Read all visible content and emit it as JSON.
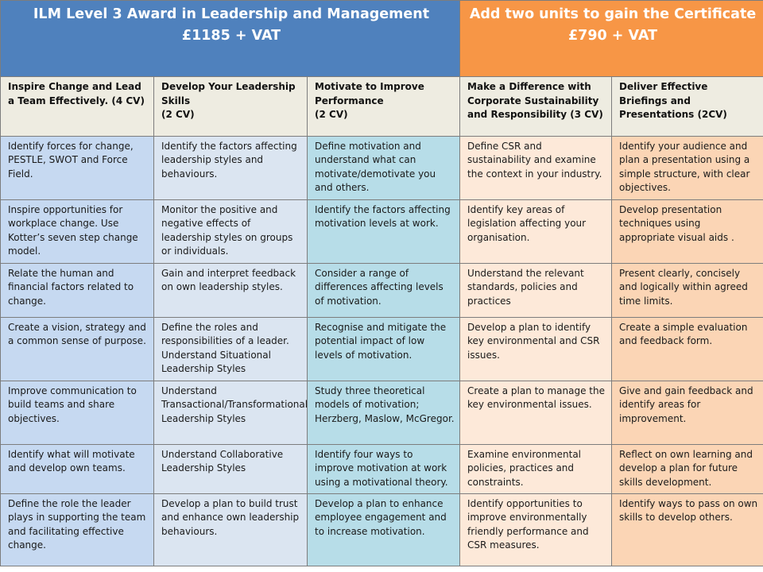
{
  "header": {
    "left_line1": "ILM Level 3 Award in Leadership and Management",
    "left_line2": "£1185  + VAT",
    "right_line1": "Add two units to gain the Certificate",
    "right_line2": "£790 + VAT"
  },
  "units": [
    {
      "title": "Inspire Change and Lead a Team Effectively.  (4 CV)",
      "credits": ""
    },
    {
      "title": "Develop Your Leadership Skills",
      "credits": "(2 CV)"
    },
    {
      "title": "Motivate to Improve Performance",
      "credits": "(2 CV)"
    },
    {
      "title": "Make a Difference with Corporate  Sustainability and Responsibility (3 CV)",
      "credits": ""
    },
    {
      "title": "Deliver Effective Briefings and Presentations (2CV)",
      "credits": ""
    }
  ],
  "rows": [
    [
      "Identify forces for change, PESTLE, SWOT and Force Field.",
      "Identify the factors affecting leadership styles and behaviours.",
      "Define motivation and understand what  can motivate/demotivate you and others.",
      "Define CSR and sustainability and examine the context in your  industry.",
      "Identify your audience and plan a presentation using a simple structure, with clear objectives."
    ],
    [
      "Inspire opportunities for workplace change. Use Kotter’s seven step change model.",
      "Monitor the positive and negative effects of leadership styles on groups or individuals.",
      "Identify the factors affecting motivation levels at work.",
      "Identify key areas of legislation affecting your organisation.",
      "Develop presentation techniques using appropriate visual aids ."
    ],
    [
      "Relate the human and financial factors related to change.",
      "Gain and interpret feedback on own leadership styles.",
      "Consider a range of differences affecting levels of motivation.",
      "Understand the relevant standards, policies and practices",
      "Present clearly, concisely and logically within agreed time limits."
    ],
    [
      "Create a vision, strategy and a common sense of purpose.",
      "Define the roles and responsibilities of a leader. Understand Situational Leadership Styles",
      "Recognise and mitigate the potential impact of low levels of motivation.",
      "Develop a plan to identify key environmental and CSR issues.",
      "Create a simple evaluation and feedback form."
    ],
    [
      "Improve communication to build teams  and share objectives.",
      "Understand Transactional/Transformational Leadership Styles",
      "Study three theoretical models of motivation; Herzberg, Maslow, McGregor.",
      "Create a plan to manage the key environmental issues.",
      "Give and gain feedback and identify areas for improvement."
    ],
    [
      "Identify what will motivate and develop own teams.",
      "Understand Collaborative Leadership Styles",
      "Identify four ways to improve motivation at work using a motivational theory.",
      "Examine environmental policies, practices and constraints.",
      "Reflect on own learning and develop a plan for future skills development."
    ],
    [
      "Define the role the leader plays in supporting the team and facilitating effective change.",
      "Develop a plan to  build trust and enhance own leadership behaviours.",
      "Develop a plan to enhance employee engagement  and to increase motivation.",
      "Identify opportunities to improve environmentally friendly performance and CSR measures.",
      "Identify ways to pass on own skills to develop others."
    ]
  ]
}
